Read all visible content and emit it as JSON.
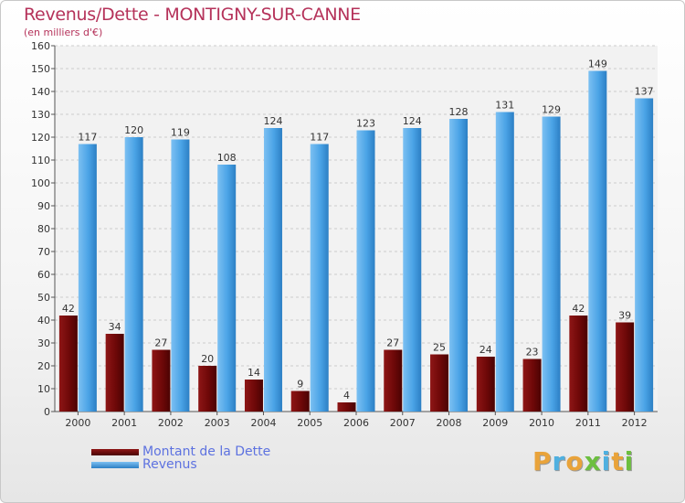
{
  "chart_data": {
    "type": "bar",
    "title": "Revenus/Dette - MONTIGNY-SUR-CANNE",
    "subtitle": "(en milliers d'€)",
    "categories": [
      "2000",
      "2001",
      "2002",
      "2003",
      "2004",
      "2005",
      "2006",
      "2007",
      "2008",
      "2009",
      "2010",
      "2011",
      "2012"
    ],
    "series": [
      {
        "name": "Montant de la Dette",
        "color": "#7a0a0a",
        "values": [
          42,
          34,
          27,
          20,
          14,
          9,
          4,
          27,
          25,
          24,
          23,
          42,
          39
        ]
      },
      {
        "name": "Revenus",
        "color": "#4da6e8",
        "values": [
          117,
          120,
          119,
          108,
          124,
          117,
          123,
          124,
          128,
          131,
          129,
          149,
          137
        ]
      }
    ],
    "ylim": [
      0,
      160
    ],
    "yticks": [
      0,
      10,
      20,
      30,
      40,
      50,
      60,
      70,
      80,
      90,
      100,
      110,
      120,
      130,
      140,
      150,
      160
    ],
    "grid": true,
    "legend_position": "bottom-left"
  },
  "logo": {
    "letters": [
      "P",
      "r",
      "o",
      "x",
      "i",
      "t",
      "i"
    ],
    "colors": [
      "#e9a33a",
      "#4fb0e0",
      "#e9a33a",
      "#6cbf3f",
      "#4fb0e0",
      "#e9a33a",
      "#6cbf3f"
    ]
  }
}
